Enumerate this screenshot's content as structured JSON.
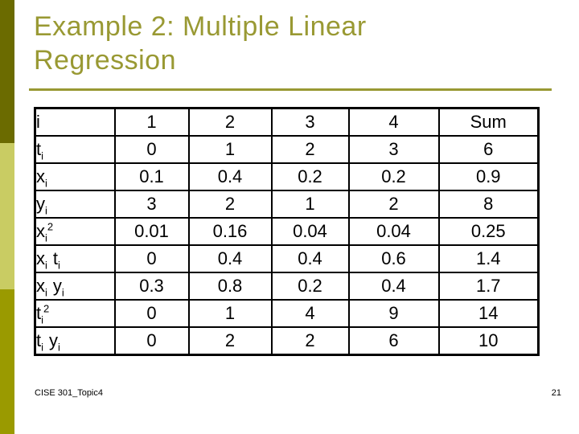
{
  "slide": {
    "title_lines": [
      "Example 2: Multiple Linear",
      "Regression"
    ],
    "footer_left": "CISE 301_Topic4",
    "page_number": "21"
  },
  "colors": {
    "background": "#FFFFFF",
    "title": "#999933",
    "rule": "#999933",
    "bar_top": "#6B6B00",
    "bar_middle": "#C9CC63",
    "bar_bottom": "#9A9A00",
    "table_border": "#000000",
    "text": "#000000"
  },
  "table": {
    "rows": [
      {
        "label": [
          {
            "base": "i"
          }
        ],
        "values": [
          "1",
          "2",
          "3",
          "4",
          "Sum"
        ]
      },
      {
        "label": [
          {
            "base": "t",
            "sub": "i"
          }
        ],
        "values": [
          "0",
          "1",
          "2",
          "3",
          "6"
        ]
      },
      {
        "label": [
          {
            "base": "x",
            "sub": "i"
          }
        ],
        "values": [
          "0.1",
          "0.4",
          "0.2",
          "0.2",
          "0.9"
        ]
      },
      {
        "label": [
          {
            "base": "y",
            "sub": "i"
          }
        ],
        "values": [
          "3",
          "2",
          "1",
          "2",
          "8"
        ]
      },
      {
        "label": [
          {
            "base": "x",
            "sub": "i",
            "sup": "2"
          }
        ],
        "values": [
          "0.01",
          "0.16",
          "0.04",
          "0.04",
          "0.25"
        ]
      },
      {
        "label": [
          {
            "base": "x",
            "sub": "i"
          },
          {
            "base": "t",
            "sub": "i"
          }
        ],
        "values": [
          "0",
          "0.4",
          "0.4",
          "0.6",
          "1.4"
        ]
      },
      {
        "label": [
          {
            "base": "x",
            "sub": "i"
          },
          {
            "base": "y",
            "sub": "i"
          }
        ],
        "values": [
          "0.3",
          "0.8",
          "0.2",
          "0.4",
          "1.7"
        ]
      },
      {
        "label": [
          {
            "base": "t",
            "sub": "i",
            "sup": "2"
          }
        ],
        "values": [
          "0",
          "1",
          "4",
          "9",
          "14"
        ]
      },
      {
        "label": [
          {
            "base": "t",
            "sub": "i"
          },
          {
            "base": "y",
            "sub": "i"
          }
        ],
        "values": [
          "0",
          "2",
          "2",
          "6",
          "10"
        ]
      }
    ]
  }
}
